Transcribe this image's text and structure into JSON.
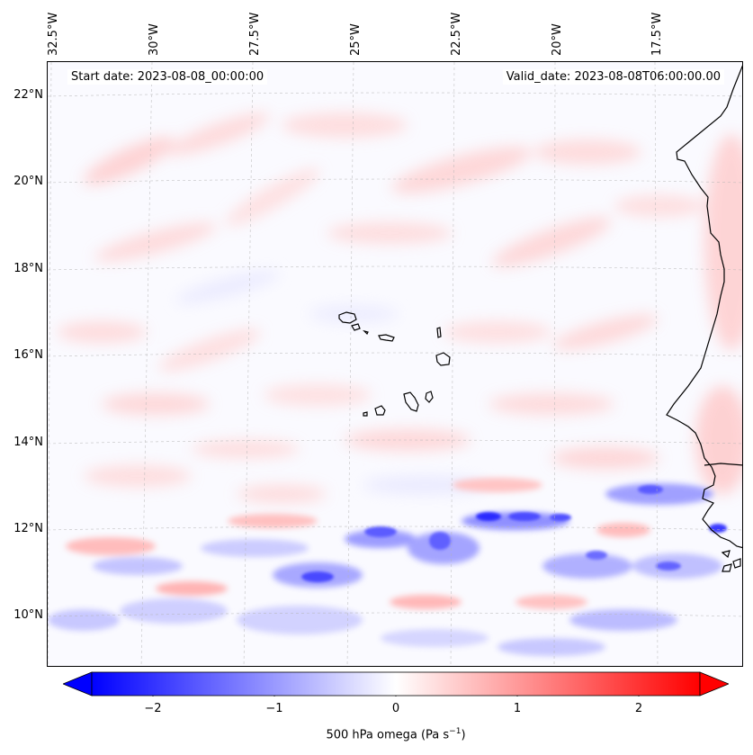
{
  "map": {
    "start_date": "Start date: 2023-08-08_00:00:00",
    "valid_date": "Valid_date: 2023-08-08T06:00:00.00",
    "lon_labels": [
      "32.5°W",
      "30°W",
      "27.5°W",
      "25°W",
      "22.5°W",
      "20°W",
      "17.5°W"
    ],
    "lat_labels": [
      "22°N",
      "20°N",
      "18°N",
      "16°N",
      "14°N",
      "12°N",
      "10°N"
    ],
    "extent": {
      "lon_min": -32.8,
      "lon_max": -15.6,
      "lat_min": 8.9,
      "lat_max": 22.8
    },
    "field": "500 hPa omega",
    "colormap": {
      "negative": "#0000ff",
      "zero": "#ffffff",
      "positive": "#ff0000"
    },
    "coastline_color": "#000000",
    "grid": true
  },
  "colorbar": {
    "ticks": [
      "−2",
      "−1",
      "0",
      "1",
      "2"
    ],
    "tick_values": [
      -2,
      -1,
      0,
      1,
      2
    ],
    "range": [
      -2.6,
      2.6
    ],
    "title_main": "500 hPa omega (Pa s",
    "title_sup": "−1",
    "title_end": ")"
  }
}
